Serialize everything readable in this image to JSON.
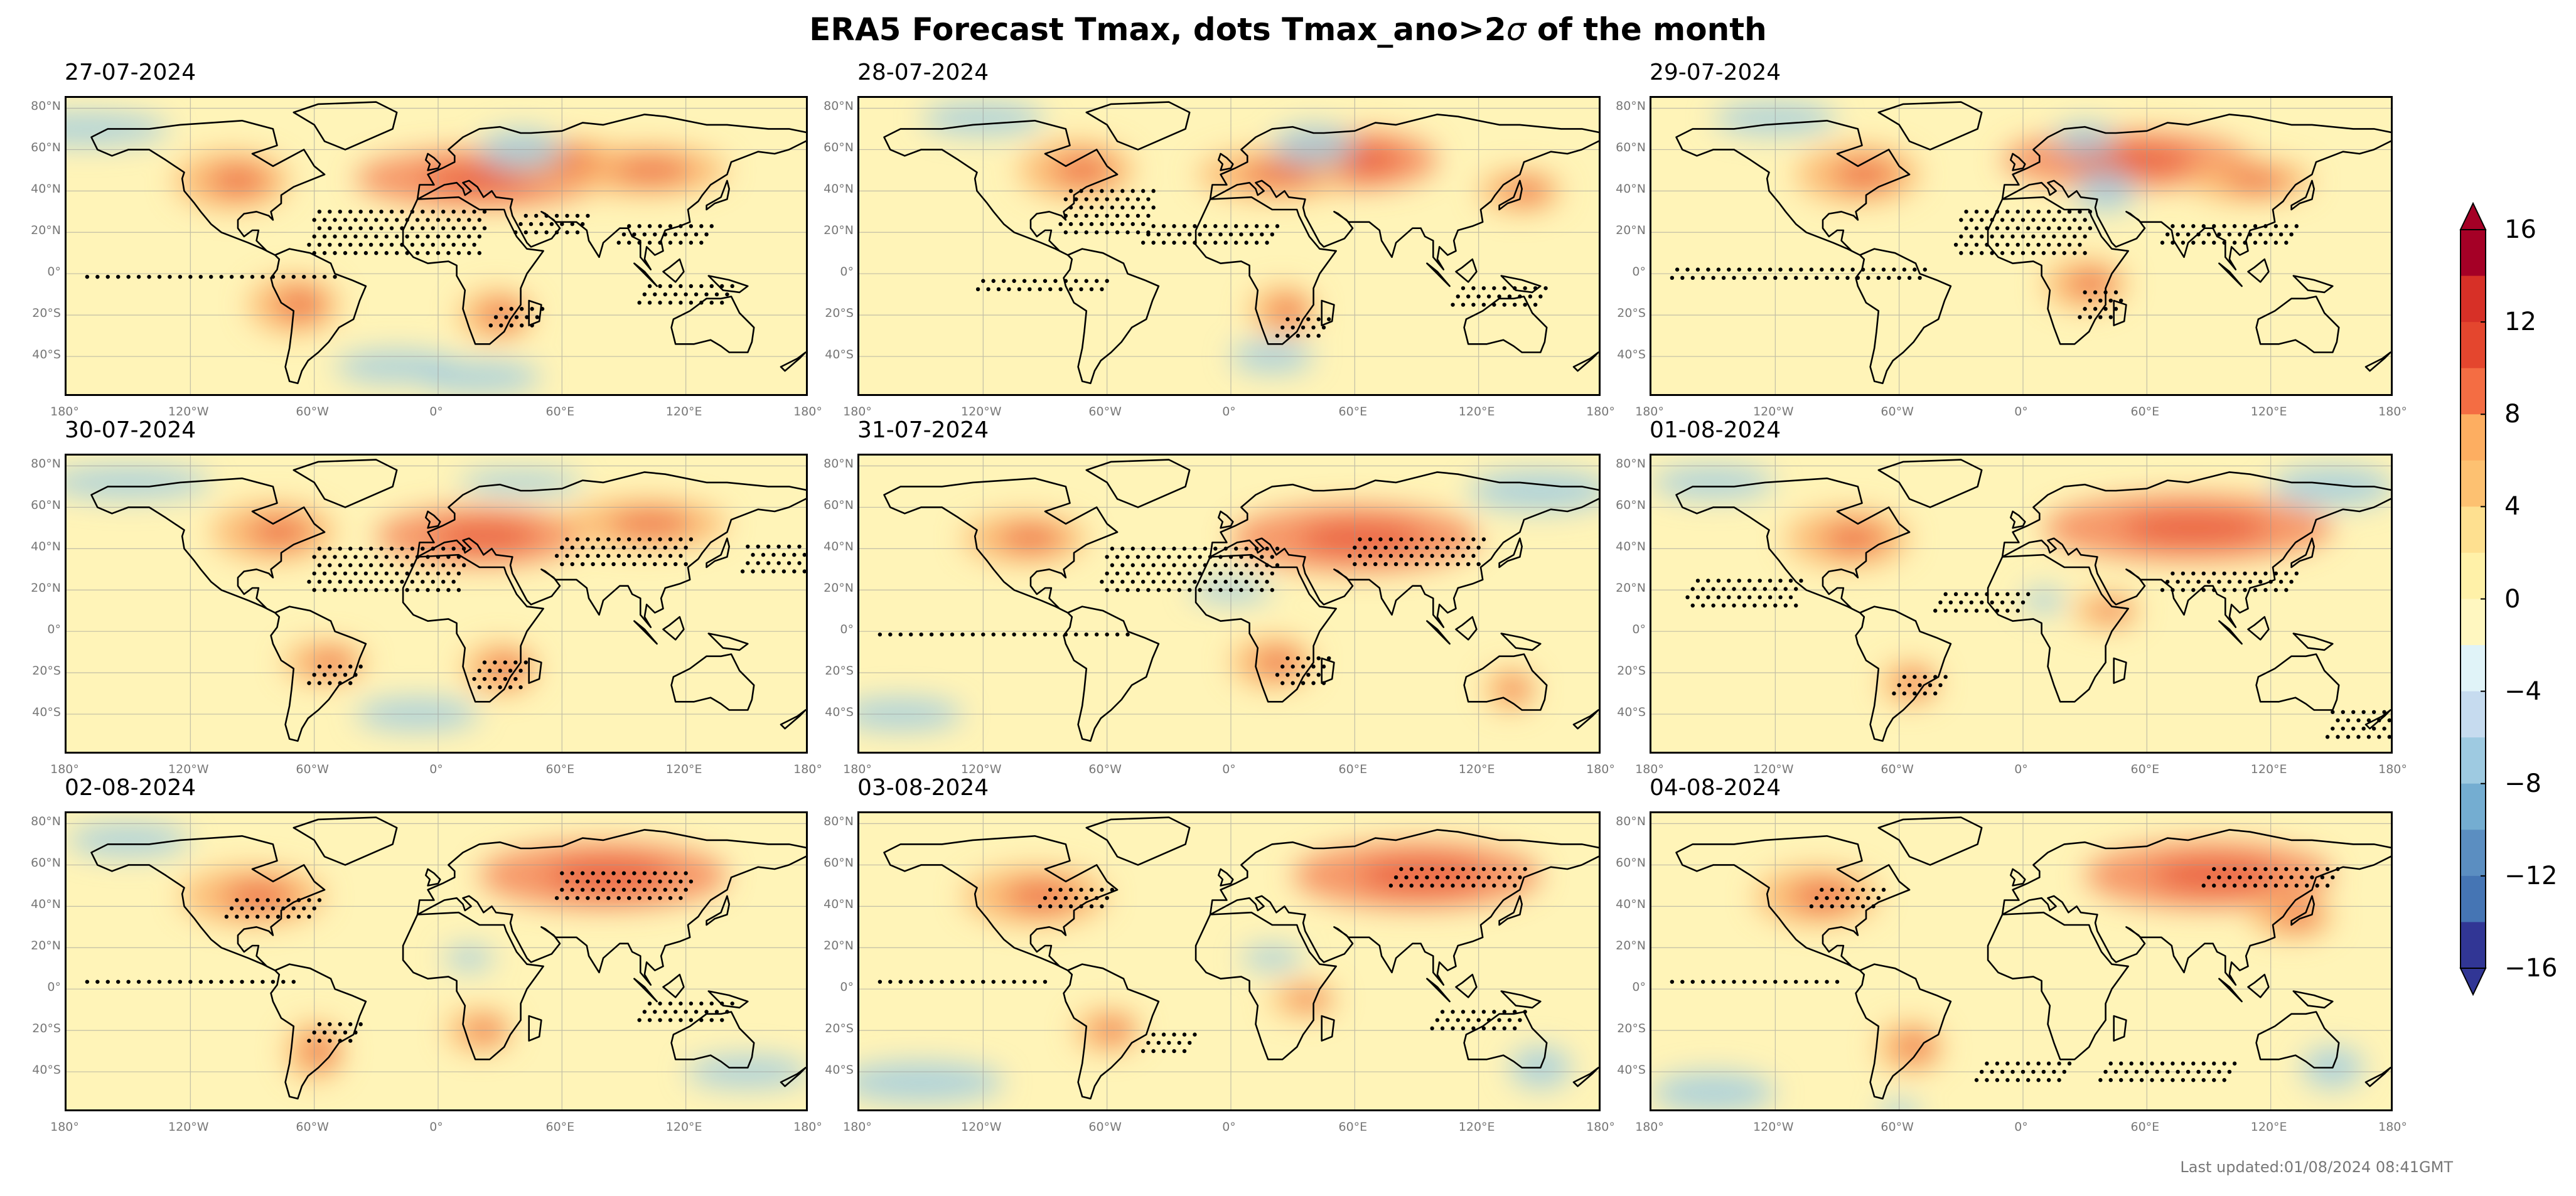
{
  "title": "ERA5 Forecast Tmax, dots Tmax_ano>2",
  "title_sigma": "σ",
  "title_suffix": " of the month",
  "panels": [
    {
      "date": "27-07-2024"
    },
    {
      "date": "28-07-2024"
    },
    {
      "date": "29-07-2024"
    },
    {
      "date": "30-07-2024"
    },
    {
      "date": "31-07-2024"
    },
    {
      "date": "01-08-2024"
    },
    {
      "date": "02-08-2024"
    },
    {
      "date": "03-08-2024"
    },
    {
      "date": "04-08-2024"
    }
  ],
  "lat_labels": [
    "80°N",
    "60°N",
    "40°N",
    "20°N",
    "0°",
    "20°S",
    "40°S"
  ],
  "lon_labels": [
    "180°",
    "120°W",
    "60°W",
    "0°",
    "60°E",
    "120°E",
    "180°"
  ],
  "colorbar": {
    "tick_labels": [
      "16",
      "12",
      "8",
      "4",
      "0",
      "−4",
      "−8",
      "−12",
      "−16"
    ],
    "range": [
      -16,
      16
    ],
    "colors": [
      "#313695",
      "#4575b4",
      "#5b8ec1",
      "#74add1",
      "#9ecae1",
      "#c6dbef",
      "#e0f3f8",
      "#fff7c0",
      "#fff1a8",
      "#fee090",
      "#fdc171",
      "#fdae61",
      "#f46d43",
      "#e4462e",
      "#d73027",
      "#a50026"
    ]
  },
  "footer": "Last updated:01/08/2024 08:41GMT"
}
